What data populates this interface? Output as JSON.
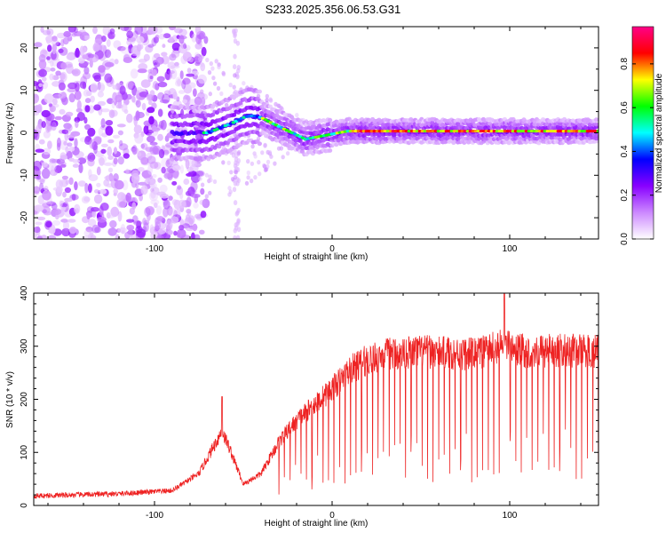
{
  "title": "S233.2025.356.06.53.G31",
  "chart_data": [
    {
      "type": "heatmap",
      "name": "spectrogram",
      "xlabel": "Height of straight line (km)",
      "ylabel": "Frequency (Hz)",
      "xlim": [
        -168,
        150
      ],
      "ylim": [
        -25,
        25
      ],
      "xticks": [
        -100,
        0,
        100
      ],
      "xtick_labels": [
        "-100",
        "0",
        "100"
      ],
      "yticks": [
        -20,
        -10,
        0,
        10,
        20
      ],
      "ytick_labels": [
        "-20",
        "-10",
        "0",
        "10",
        "20"
      ],
      "colorbar": {
        "label": "Normalized spectral amplitude",
        "range": [
          0,
          0.97
        ],
        "ticks": [
          0.0,
          0.2,
          0.4,
          0.6,
          0.8
        ],
        "tick_labels": [
          "0.0",
          "0.2",
          "0.4",
          "0.6",
          "0.8"
        ],
        "colors": [
          "#ffffff",
          "#cc88ff",
          "#8800ff",
          "#0000ff",
          "#00ffff",
          "#00ff00",
          "#ffff00",
          "#ff0000",
          "#ff0088"
        ]
      },
      "description_features": {
        "noise_region_x": [
          -168,
          -75
        ],
        "ionospheric_transition_x": [
          -75,
          -20
        ],
        "signal_line_frequency_hz": 0,
        "hump_peak": [
          -38,
          4
        ]
      }
    },
    {
      "type": "line",
      "name": "snr",
      "xlabel": "Height of straight line (km)",
      "ylabel": "SNR (10 * v/v)",
      "xlim": [
        -168,
        150
      ],
      "ylim": [
        0,
        400
      ],
      "xticks": [
        -100,
        0,
        100
      ],
      "xtick_labels": [
        "-100",
        "0",
        "100"
      ],
      "yticks": [
        0,
        100,
        200,
        300,
        400
      ],
      "ytick_labels": [
        "0",
        "100",
        "200",
        "300",
        "400"
      ],
      "color": "#ee2222",
      "envelope": [
        {
          "x": -168,
          "y": 18
        },
        {
          "x": -120,
          "y": 22
        },
        {
          "x": -90,
          "y": 28
        },
        {
          "x": -75,
          "y": 60
        },
        {
          "x": -62,
          "y": 140
        },
        {
          "x": -58,
          "y": 110
        },
        {
          "x": -50,
          "y": 40
        },
        {
          "x": -40,
          "y": 60
        },
        {
          "x": -30,
          "y": 120
        },
        {
          "x": -20,
          "y": 160
        },
        {
          "x": -10,
          "y": 190
        },
        {
          "x": 0,
          "y": 220
        },
        {
          "x": 10,
          "y": 255
        },
        {
          "x": 20,
          "y": 275
        },
        {
          "x": 30,
          "y": 285
        },
        {
          "x": 50,
          "y": 290
        },
        {
          "x": 80,
          "y": 285
        },
        {
          "x": 96,
          "y": 300
        },
        {
          "x": 110,
          "y": 290
        },
        {
          "x": 130,
          "y": 292
        },
        {
          "x": 150,
          "y": 290
        }
      ],
      "spikes": [
        {
          "x": -62,
          "y": 205
        },
        {
          "x": 97,
          "y": 400
        }
      ]
    }
  ]
}
